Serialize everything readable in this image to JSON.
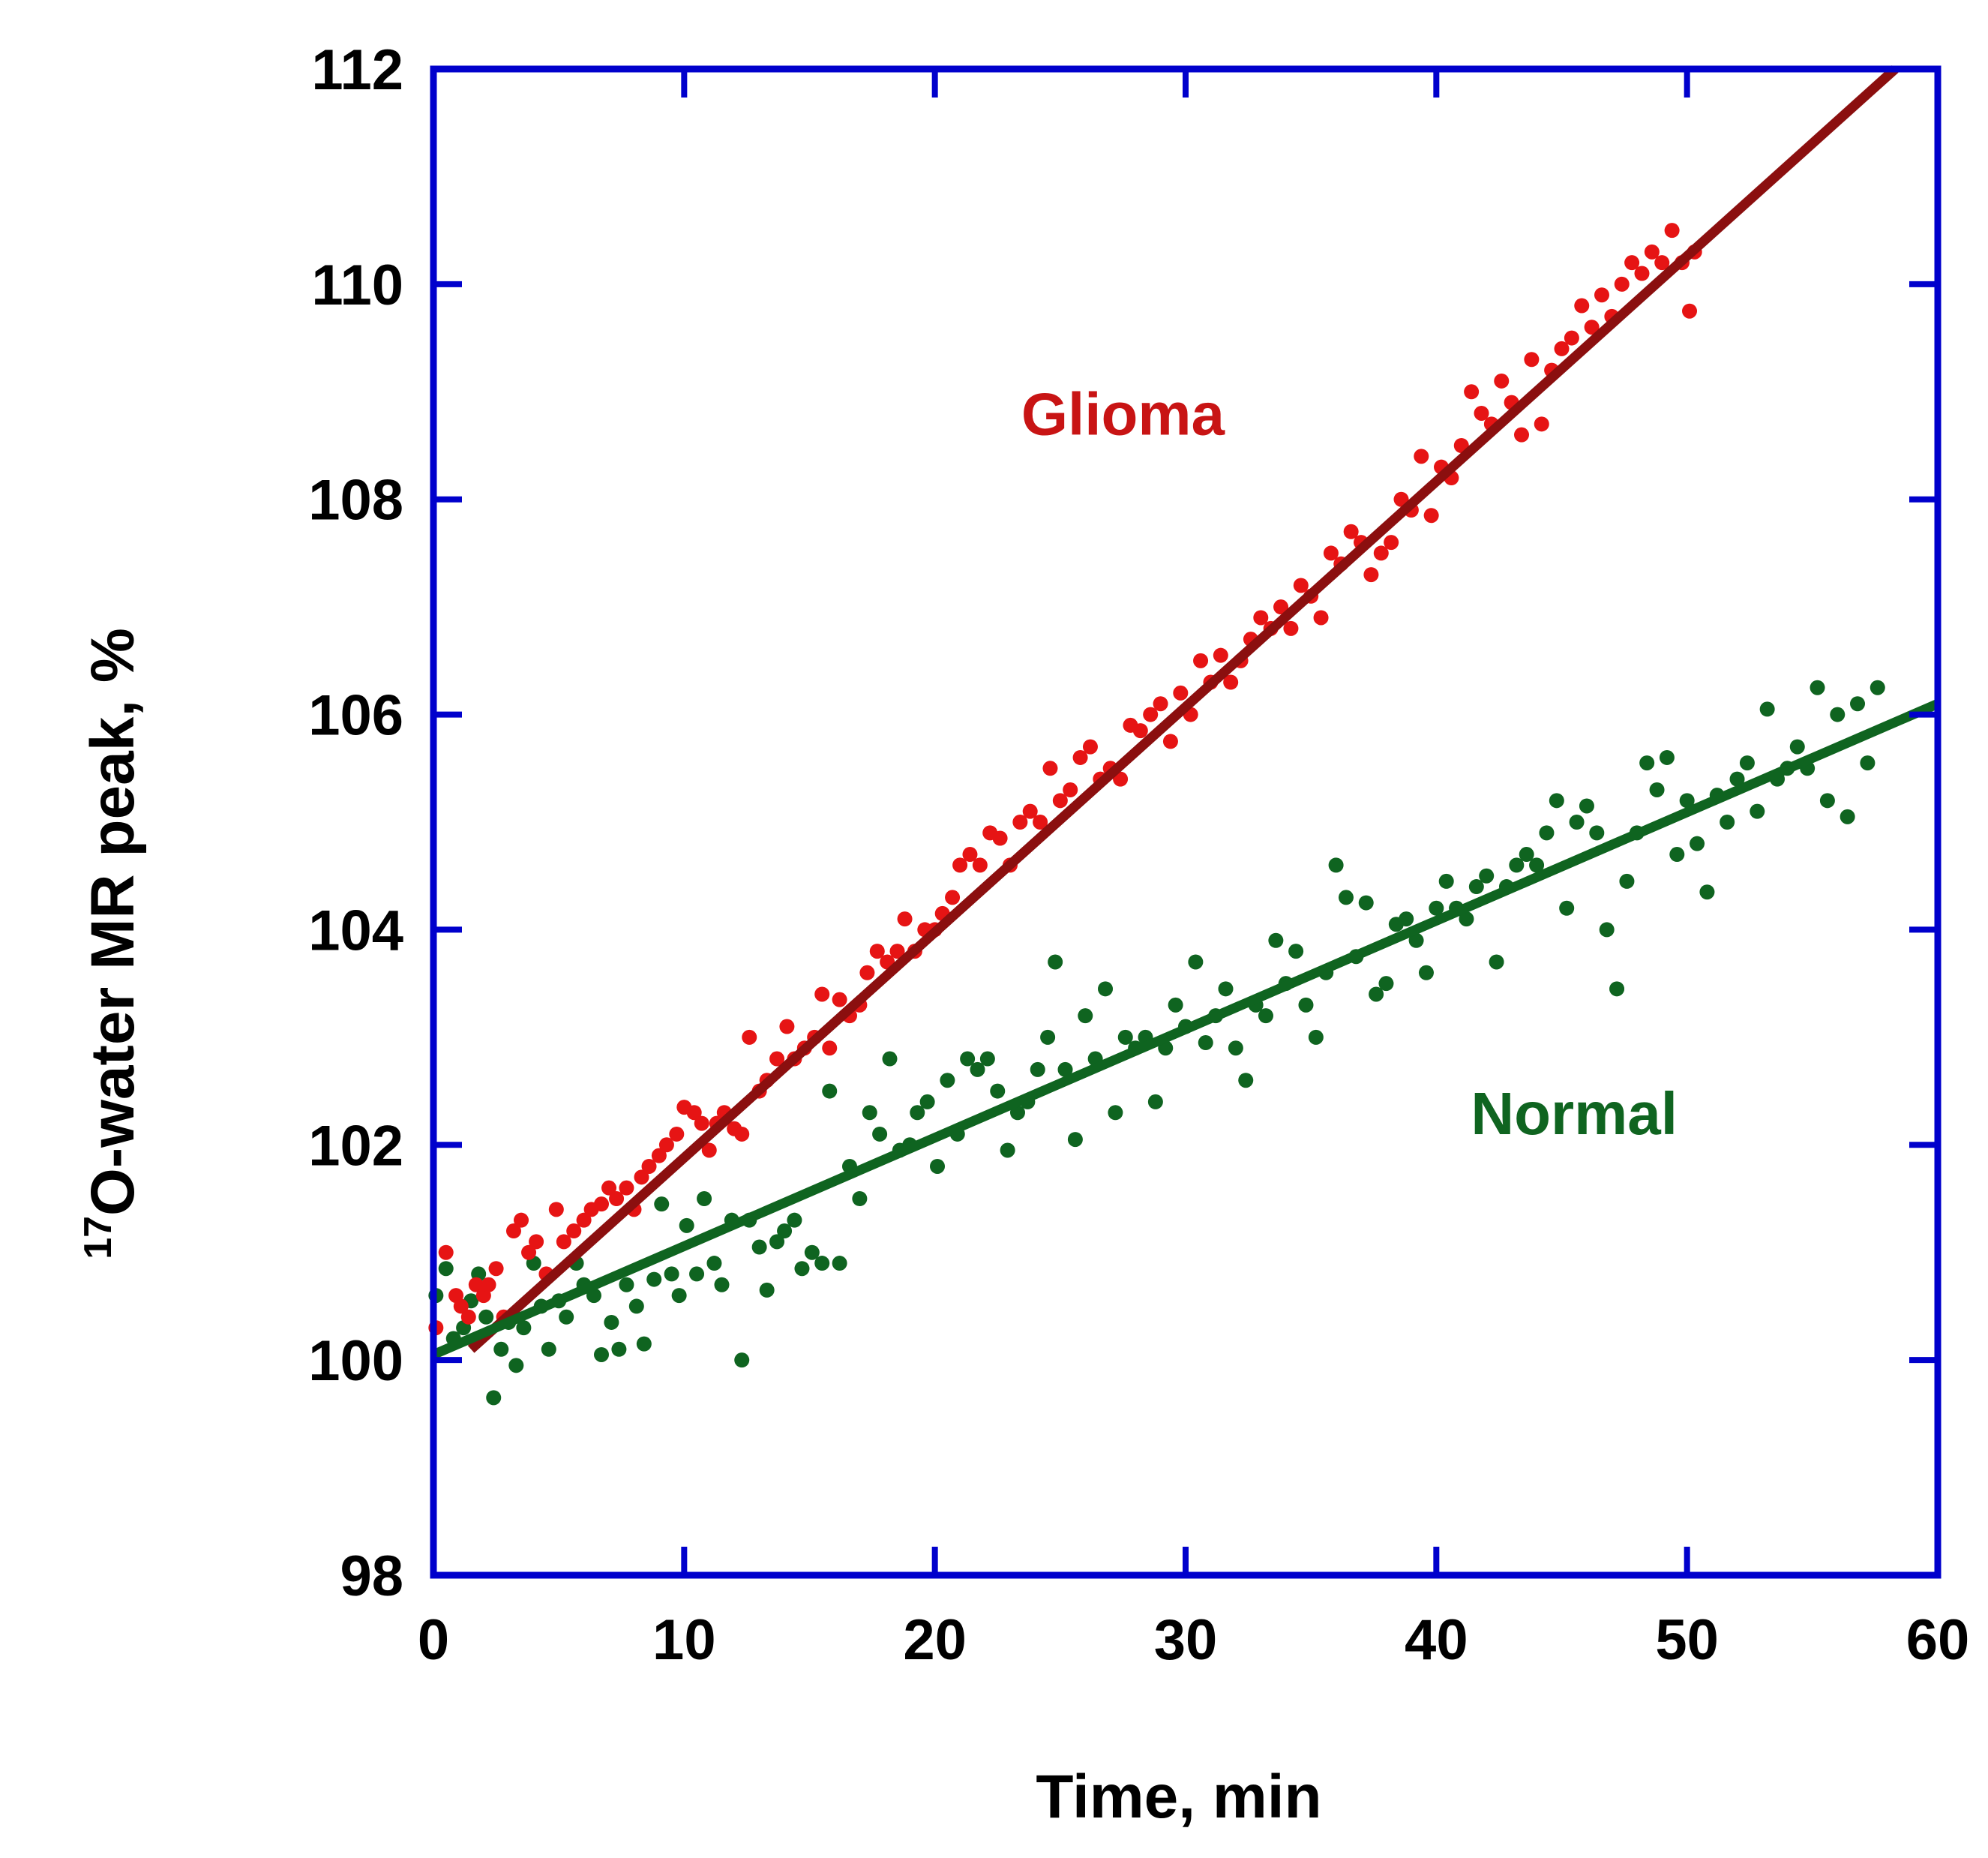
{
  "chart_data": {
    "type": "scatter",
    "title": "",
    "xlabel": "Time, min",
    "ylabel_superscript": "17",
    "ylabel": "O-water MR peak, %",
    "xlim": [
      0,
      60
    ],
    "ylim": [
      98,
      112
    ],
    "xticks": [
      0,
      10,
      20,
      30,
      40,
      50,
      60
    ],
    "yticks": [
      98,
      100,
      102,
      104,
      106,
      108,
      110,
      112
    ],
    "grid": false,
    "colors": {
      "frame": "#0000cc",
      "glioma_points": "#e61414",
      "glioma_fit": "#8b0f0f",
      "glioma_label": "#c81414",
      "normal_points": "#0f6420",
      "normal_fit": "#0f6420",
      "normal_label": "#0f6420"
    },
    "series": [
      {
        "name": "Glioma",
        "label_position": [
          27.5,
          108.6
        ],
        "fit": {
          "x": [
            1.5,
            58.3
          ],
          "y": [
            100.1,
            112
          ]
        },
        "points": [
          [
            0.1,
            100.3
          ],
          [
            0.5,
            101.0
          ],
          [
            0.9,
            100.6
          ],
          [
            1.1,
            100.5
          ],
          [
            1.4,
            100.4
          ],
          [
            1.7,
            100.7
          ],
          [
            2.0,
            100.6
          ],
          [
            2.2,
            100.7
          ],
          [
            2.5,
            100.85
          ],
          [
            2.8,
            100.4
          ],
          [
            3.2,
            101.2
          ],
          [
            3.5,
            101.3
          ],
          [
            3.8,
            101.0
          ],
          [
            4.1,
            101.1
          ],
          [
            4.5,
            100.8
          ],
          [
            4.9,
            101.4
          ],
          [
            5.2,
            101.1
          ],
          [
            5.6,
            101.2
          ],
          [
            6.0,
            101.3
          ],
          [
            6.3,
            101.4
          ],
          [
            6.7,
            101.45
          ],
          [
            7.0,
            101.6
          ],
          [
            7.3,
            101.5
          ],
          [
            7.7,
            101.6
          ],
          [
            8.0,
            101.4
          ],
          [
            8.3,
            101.7
          ],
          [
            8.6,
            101.8
          ],
          [
            9.0,
            101.9
          ],
          [
            9.3,
            102.0
          ],
          [
            9.7,
            102.1
          ],
          [
            10.0,
            102.35
          ],
          [
            10.4,
            102.3
          ],
          [
            10.7,
            102.2
          ],
          [
            11.0,
            101.95
          ],
          [
            11.3,
            102.2
          ],
          [
            11.6,
            102.3
          ],
          [
            12.0,
            102.15
          ],
          [
            12.3,
            102.1
          ],
          [
            12.6,
            103.0
          ],
          [
            13.0,
            102.5
          ],
          [
            13.3,
            102.6
          ],
          [
            13.7,
            102.8
          ],
          [
            14.1,
            103.1
          ],
          [
            14.4,
            102.8
          ],
          [
            14.8,
            102.9
          ],
          [
            15.2,
            103.0
          ],
          [
            15.5,
            103.4
          ],
          [
            15.8,
            102.9
          ],
          [
            16.2,
            103.35
          ],
          [
            16.6,
            103.2
          ],
          [
            17.0,
            103.3
          ],
          [
            17.3,
            103.6
          ],
          [
            17.7,
            103.8
          ],
          [
            18.1,
            103.7
          ],
          [
            18.5,
            103.8
          ],
          [
            18.8,
            104.1
          ],
          [
            19.2,
            103.8
          ],
          [
            19.6,
            104.0
          ],
          [
            20.0,
            104.0
          ],
          [
            20.3,
            104.15
          ],
          [
            20.7,
            104.3
          ],
          [
            21.0,
            104.6
          ],
          [
            21.4,
            104.7
          ],
          [
            21.8,
            104.6
          ],
          [
            22.2,
            104.9
          ],
          [
            22.6,
            104.85
          ],
          [
            23.0,
            104.6
          ],
          [
            23.4,
            105.0
          ],
          [
            23.8,
            105.1
          ],
          [
            24.2,
            105.0
          ],
          [
            24.6,
            105.5
          ],
          [
            25.0,
            105.2
          ],
          [
            25.4,
            105.3
          ],
          [
            25.8,
            105.6
          ],
          [
            26.2,
            105.7
          ],
          [
            26.6,
            105.4
          ],
          [
            27.0,
            105.5
          ],
          [
            27.4,
            105.4
          ],
          [
            27.8,
            105.9
          ],
          [
            28.2,
            105.85
          ],
          [
            28.6,
            106.0
          ],
          [
            29.0,
            106.1
          ],
          [
            29.4,
            105.75
          ],
          [
            29.8,
            106.2
          ],
          [
            30.2,
            106.0
          ],
          [
            30.6,
            106.5
          ],
          [
            31.0,
            106.3
          ],
          [
            31.4,
            106.55
          ],
          [
            31.8,
            106.3
          ],
          [
            32.2,
            106.5
          ],
          [
            32.6,
            106.7
          ],
          [
            33.0,
            106.9
          ],
          [
            33.4,
            106.8
          ],
          [
            33.8,
            107.0
          ],
          [
            34.2,
            106.8
          ],
          [
            34.6,
            107.2
          ],
          [
            35.0,
            107.1
          ],
          [
            35.4,
            106.9
          ],
          [
            35.8,
            107.5
          ],
          [
            36.2,
            107.4
          ],
          [
            36.6,
            107.7
          ],
          [
            37.0,
            107.6
          ],
          [
            37.4,
            107.3
          ],
          [
            37.8,
            107.5
          ],
          [
            38.2,
            107.6
          ],
          [
            38.6,
            108.0
          ],
          [
            39.0,
            107.9
          ],
          [
            39.4,
            108.4
          ],
          [
            39.8,
            107.85
          ],
          [
            40.2,
            108.3
          ],
          [
            40.6,
            108.2
          ],
          [
            41.0,
            108.5
          ],
          [
            41.4,
            109.0
          ],
          [
            41.8,
            108.8
          ],
          [
            42.2,
            108.7
          ],
          [
            42.6,
            109.1
          ],
          [
            43.0,
            108.9
          ],
          [
            43.4,
            108.6
          ],
          [
            43.8,
            109.3
          ],
          [
            44.2,
            108.7
          ],
          [
            44.6,
            109.2
          ],
          [
            45.0,
            109.4
          ],
          [
            45.4,
            109.5
          ],
          [
            45.8,
            109.8
          ],
          [
            46.2,
            109.6
          ],
          [
            46.6,
            109.9
          ],
          [
            47.0,
            109.7
          ],
          [
            47.4,
            110.0
          ],
          [
            47.8,
            110.2
          ],
          [
            48.2,
            110.1
          ],
          [
            48.6,
            110.3
          ],
          [
            49.0,
            110.2
          ],
          [
            49.4,
            110.5
          ],
          [
            49.8,
            110.2
          ],
          [
            50.1,
            109.75
          ],
          [
            50.3,
            110.3
          ]
        ]
      },
      {
        "name": "Normal",
        "label_position": [
          45.5,
          102.1
        ],
        "fit": {
          "x": [
            0,
            60
          ],
          "y": [
            100.05,
            106.1
          ]
        },
        "points": [
          [
            0.1,
            100.6
          ],
          [
            0.5,
            100.85
          ],
          [
            0.8,
            100.2
          ],
          [
            1.2,
            100.3
          ],
          [
            1.5,
            100.55
          ],
          [
            1.8,
            100.8
          ],
          [
            2.1,
            100.4
          ],
          [
            2.4,
            99.65
          ],
          [
            2.7,
            100.1
          ],
          [
            3.0,
            100.35
          ],
          [
            3.3,
            99.95
          ],
          [
            3.6,
            100.3
          ],
          [
            4.0,
            100.9
          ],
          [
            4.3,
            100.5
          ],
          [
            4.6,
            100.1
          ],
          [
            5.0,
            100.55
          ],
          [
            5.3,
            100.4
          ],
          [
            5.7,
            100.9
          ],
          [
            6.0,
            100.7
          ],
          [
            6.4,
            100.6
          ],
          [
            6.7,
            100.05
          ],
          [
            7.1,
            100.35
          ],
          [
            7.4,
            100.1
          ],
          [
            7.7,
            100.7
          ],
          [
            8.1,
            100.5
          ],
          [
            8.4,
            100.15
          ],
          [
            8.8,
            100.75
          ],
          [
            9.1,
            101.45
          ],
          [
            9.5,
            100.8
          ],
          [
            9.8,
            100.6
          ],
          [
            10.1,
            101.25
          ],
          [
            10.5,
            100.8
          ],
          [
            10.8,
            101.5
          ],
          [
            11.2,
            100.9
          ],
          [
            11.5,
            100.7
          ],
          [
            11.9,
            101.3
          ],
          [
            12.3,
            100.0
          ],
          [
            12.6,
            101.3
          ],
          [
            13.0,
            101.05
          ],
          [
            13.3,
            100.65
          ],
          [
            13.7,
            101.1
          ],
          [
            14.0,
            101.2
          ],
          [
            14.4,
            101.3
          ],
          [
            14.7,
            100.85
          ],
          [
            15.1,
            101.0
          ],
          [
            15.5,
            100.9
          ],
          [
            15.8,
            102.5
          ],
          [
            16.2,
            100.9
          ],
          [
            16.6,
            101.8
          ],
          [
            17.0,
            101.5
          ],
          [
            17.4,
            102.3
          ],
          [
            17.8,
            102.1
          ],
          [
            18.2,
            102.8
          ],
          [
            18.6,
            101.95
          ],
          [
            19.0,
            102.0
          ],
          [
            19.3,
            102.3
          ],
          [
            19.7,
            102.4
          ],
          [
            20.1,
            101.8
          ],
          [
            20.5,
            102.6
          ],
          [
            20.9,
            102.1
          ],
          [
            21.3,
            102.8
          ],
          [
            21.7,
            102.7
          ],
          [
            22.1,
            102.8
          ],
          [
            22.5,
            102.5
          ],
          [
            22.9,
            101.95
          ],
          [
            23.3,
            102.3
          ],
          [
            23.7,
            102.4
          ],
          [
            24.1,
            102.7
          ],
          [
            24.5,
            103.0
          ],
          [
            24.8,
            103.7
          ],
          [
            25.2,
            102.7
          ],
          [
            25.6,
            102.05
          ],
          [
            26.0,
            103.2
          ],
          [
            26.4,
            102.8
          ],
          [
            26.8,
            103.45
          ],
          [
            27.2,
            102.3
          ],
          [
            27.6,
            103.0
          ],
          [
            28.0,
            102.9
          ],
          [
            28.4,
            103.0
          ],
          [
            28.8,
            102.4
          ],
          [
            29.2,
            102.9
          ],
          [
            29.6,
            103.3
          ],
          [
            30.0,
            103.1
          ],
          [
            30.4,
            103.7
          ],
          [
            30.8,
            102.95
          ],
          [
            31.2,
            103.2
          ],
          [
            31.6,
            103.45
          ],
          [
            32.0,
            102.9
          ],
          [
            32.4,
            102.6
          ],
          [
            32.8,
            103.3
          ],
          [
            33.2,
            103.2
          ],
          [
            33.6,
            103.9
          ],
          [
            34.0,
            103.5
          ],
          [
            34.4,
            103.8
          ],
          [
            34.8,
            103.3
          ],
          [
            35.2,
            103.0
          ],
          [
            35.6,
            103.6
          ],
          [
            36.0,
            104.6
          ],
          [
            36.4,
            104.3
          ],
          [
            36.8,
            103.75
          ],
          [
            37.2,
            104.25
          ],
          [
            37.6,
            103.4
          ],
          [
            38.0,
            103.5
          ],
          [
            38.4,
            104.05
          ],
          [
            38.8,
            104.1
          ],
          [
            39.2,
            103.9
          ],
          [
            39.6,
            103.6
          ],
          [
            40.0,
            104.2
          ],
          [
            40.4,
            104.45
          ],
          [
            40.8,
            104.2
          ],
          [
            41.2,
            104.1
          ],
          [
            41.6,
            104.4
          ],
          [
            42.0,
            104.5
          ],
          [
            42.4,
            103.7
          ],
          [
            42.8,
            104.4
          ],
          [
            43.2,
            104.6
          ],
          [
            43.6,
            104.7
          ],
          [
            44.0,
            104.6
          ],
          [
            44.4,
            104.9
          ],
          [
            44.8,
            105.2
          ],
          [
            45.2,
            104.2
          ],
          [
            45.6,
            105.0
          ],
          [
            46.0,
            105.15
          ],
          [
            46.4,
            104.9
          ],
          [
            46.8,
            104.0
          ],
          [
            47.2,
            103.45
          ],
          [
            47.6,
            104.45
          ],
          [
            48.0,
            104.9
          ],
          [
            48.4,
            105.55
          ],
          [
            48.8,
            105.3
          ],
          [
            49.2,
            105.6
          ],
          [
            49.6,
            104.7
          ],
          [
            50.0,
            105.2
          ],
          [
            50.4,
            104.8
          ],
          [
            50.8,
            104.35
          ],
          [
            51.2,
            105.25
          ],
          [
            51.6,
            105.0
          ],
          [
            52.0,
            105.4
          ],
          [
            52.4,
            105.55
          ],
          [
            52.8,
            105.1
          ],
          [
            53.2,
            106.05
          ],
          [
            53.6,
            105.4
          ],
          [
            54.0,
            105.5
          ],
          [
            54.4,
            105.7
          ],
          [
            54.8,
            105.5
          ],
          [
            55.2,
            106.25
          ],
          [
            55.6,
            105.2
          ],
          [
            56.0,
            106.0
          ],
          [
            56.4,
            105.05
          ],
          [
            56.8,
            106.1
          ],
          [
            57.2,
            105.55
          ],
          [
            57.6,
            106.25
          ]
        ]
      }
    ]
  }
}
